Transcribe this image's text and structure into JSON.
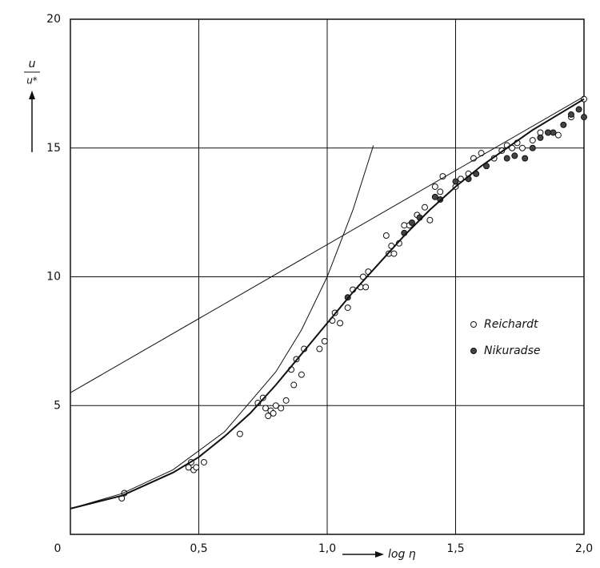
{
  "chart_data": {
    "type": "scatter",
    "xlabel": "log η",
    "ylabel": {
      "numerator": "u",
      "denominator": "u*"
    },
    "xlim": [
      0,
      2
    ],
    "ylim": [
      0,
      20
    ],
    "xticks": [
      0,
      {
        "value": 0.5,
        "label": "0,5"
      },
      {
        "value": 1,
        "label": "1,0"
      },
      {
        "value": 1.5,
        "label": "1,5"
      },
      {
        "value": 2,
        "label": "2,0"
      }
    ],
    "yticks": [
      5,
      10,
      15,
      20
    ],
    "grid": true,
    "series": [
      {
        "name": "Reichardt",
        "kind": "scatter",
        "marker": "open",
        "color": "#111111",
        "x": [
          0.2,
          0.21,
          0.46,
          0.47,
          0.48,
          0.49,
          0.52,
          0.66,
          0.73,
          0.75,
          0.76,
          0.77,
          0.78,
          0.79,
          0.8,
          0.82,
          0.84,
          0.86,
          0.87,
          0.88,
          0.9,
          0.91,
          0.97,
          0.99,
          1.02,
          1.03,
          1.05,
          1.08,
          1.1,
          1.13,
          1.14,
          1.15,
          1.16,
          1.23,
          1.24,
          1.25,
          1.26,
          1.28,
          1.3,
          1.32,
          1.35,
          1.38,
          1.4,
          1.42,
          1.44,
          1.45,
          1.5,
          1.52,
          1.55,
          1.57,
          1.6,
          1.65,
          1.68,
          1.7,
          1.72,
          1.74,
          1.76,
          1.8,
          1.83,
          1.86,
          1.9,
          1.95,
          2.0
        ],
        "values": [
          1.4,
          1.6,
          2.6,
          2.8,
          2.5,
          2.6,
          2.8,
          3.9,
          5.1,
          5.3,
          4.9,
          4.6,
          4.8,
          4.7,
          5.0,
          4.9,
          5.2,
          6.4,
          5.8,
          6.8,
          6.2,
          7.2,
          7.2,
          7.5,
          8.3,
          8.6,
          8.2,
          8.8,
          9.5,
          9.6,
          10.0,
          9.6,
          10.2,
          11.6,
          10.9,
          11.2,
          10.9,
          11.3,
          12.0,
          12.0,
          12.4,
          12.7,
          12.2,
          13.5,
          13.3,
          13.9,
          13.5,
          13.8,
          14.0,
          14.6,
          14.8,
          14.6,
          14.9,
          15.1,
          15.0,
          15.2,
          15.0,
          15.3,
          15.6,
          15.6,
          15.5,
          16.2,
          16.9
        ]
      },
      {
        "name": "Nikuradse",
        "kind": "scatter",
        "marker": "filled",
        "color": "#111111",
        "x": [
          1.08,
          1.3,
          1.33,
          1.36,
          1.42,
          1.44,
          1.5,
          1.55,
          1.58,
          1.62,
          1.7,
          1.73,
          1.77,
          1.8,
          1.83,
          1.86,
          1.88,
          1.92,
          1.95,
          1.98,
          2.0
        ],
        "values": [
          9.2,
          11.7,
          12.1,
          12.3,
          13.1,
          13.0,
          13.7,
          13.8,
          14.0,
          14.3,
          14.6,
          14.7,
          14.6,
          15.0,
          15.4,
          15.6,
          15.6,
          15.9,
          16.3,
          16.5,
          16.2
        ]
      },
      {
        "kind": "line",
        "color": "#111111",
        "width": 1,
        "x": [
          0,
          0.2,
          0.4,
          0.6,
          0.8,
          0.9,
          1.0,
          1.1,
          1.18
        ],
        "values": [
          1,
          1.58,
          2.51,
          3.98,
          6.31,
          7.94,
          10,
          12.59,
          15.1
        ]
      },
      {
        "kind": "line",
        "color": "#111111",
        "width": 1,
        "x": [
          0,
          2
        ],
        "values": [
          5.5,
          17.0
        ]
      },
      {
        "kind": "line",
        "color": "#111111",
        "width": 2,
        "x": [
          0,
          0.2,
          0.4,
          0.5,
          0.6,
          0.7,
          0.8,
          0.9,
          1.0,
          1.1,
          1.2,
          1.3,
          1.4,
          1.5,
          1.6,
          1.7,
          1.8,
          1.9,
          2.0
        ],
        "values": [
          1,
          1.5,
          2.4,
          3.0,
          3.8,
          4.7,
          5.8,
          7.0,
          8.2,
          9.4,
          10.5,
          11.6,
          12.6,
          13.5,
          14.3,
          15.0,
          15.7,
          16.3,
          16.9
        ]
      }
    ]
  }
}
